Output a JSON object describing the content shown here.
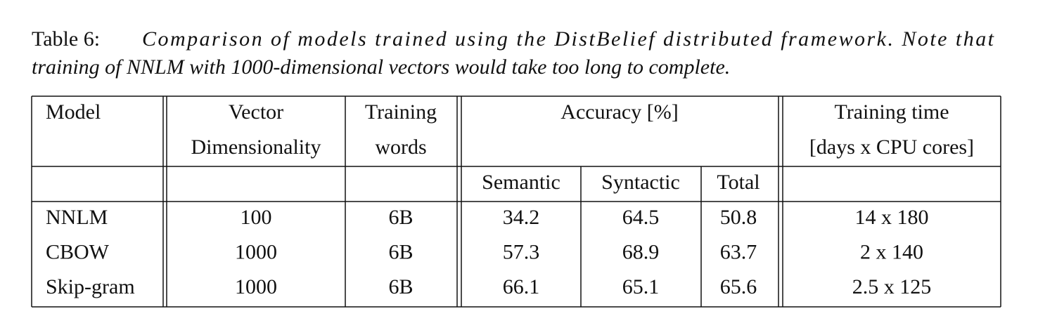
{
  "caption": {
    "label": "Table 6:",
    "lines": [
      "Comparison of models trained using the DistBelief distributed framework.  Note that",
      "training of NNLM with 1000-dimensional vectors would take too long to complete."
    ]
  },
  "table": {
    "header": [
      [
        "Model"
      ],
      [
        "Vector",
        "Dimensionality"
      ],
      [
        "Training",
        "words"
      ],
      [
        "Accuracy [%]"
      ],
      [
        "Training time",
        "[days x CPU cores]"
      ]
    ],
    "subheader": [
      "Semantic",
      "Syntactic",
      "Total"
    ],
    "rows": [
      [
        "NNLM",
        100,
        "6B",
        34.2,
        64.5,
        50.8,
        "14 x 180"
      ],
      [
        "CBOW",
        1000,
        "6B",
        57.3,
        68.9,
        63.7,
        "2 x 140"
      ],
      [
        "Skip-gram",
        1000,
        "6B",
        66.1,
        65.1,
        65.6,
        "2.5 x 125"
      ]
    ]
  }
}
